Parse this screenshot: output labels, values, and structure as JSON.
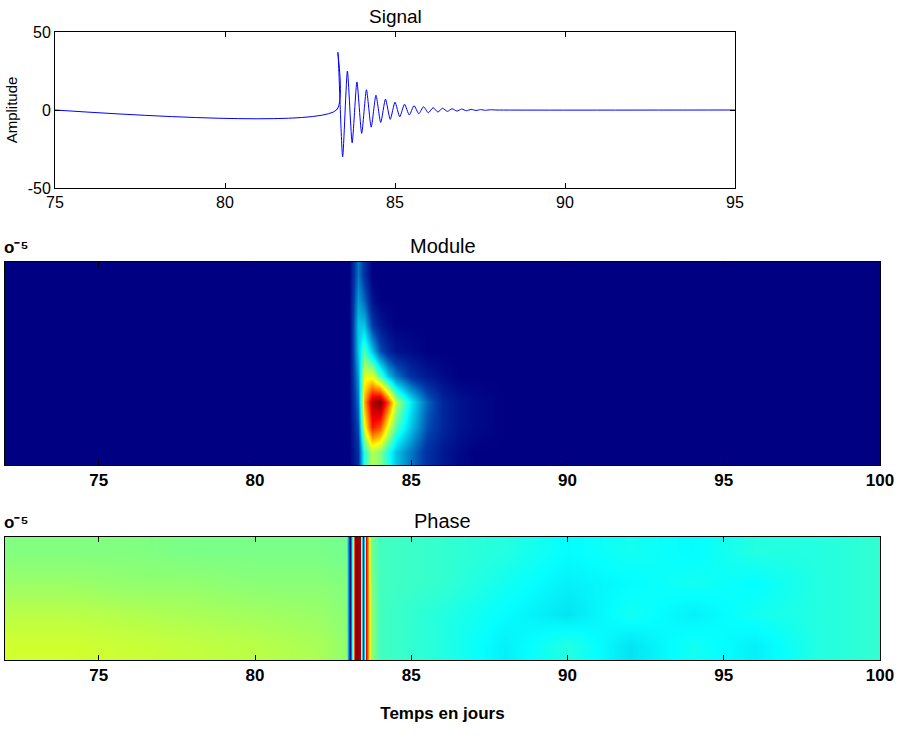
{
  "chart_data": [
    {
      "type": "line",
      "title": "Signal",
      "y_label": "Amplitude",
      "color": "#0000ff",
      "grid": false,
      "x": [
        75,
        83.28,
        83.32,
        83.46,
        83.6,
        83.74,
        83.88,
        84.02,
        84.16,
        84.3,
        84.44,
        84.58,
        84.72,
        84.86,
        85.0,
        85.14,
        85.28,
        85.42,
        85.56,
        85.7,
        85.84,
        85.98,
        86.12,
        86.26,
        86.4,
        86.54,
        86.68,
        86.82,
        86.96,
        87.1,
        87.24,
        87.38,
        87.52,
        87.66,
        87.8,
        88.0,
        95
      ],
      "values": [
        0,
        0,
        37,
        -30,
        25,
        -21,
        18,
        -15,
        13,
        -11,
        9.5,
        -8,
        7,
        -6,
        5,
        -4.3,
        3.7,
        -3.2,
        2.8,
        -2.4,
        2.1,
        -1.8,
        1.5,
        -1.3,
        1.1,
        -0.9,
        0.8,
        -0.7,
        0.6,
        -0.5,
        0.4,
        -0.3,
        0.25,
        -0.2,
        0.15,
        0,
        0
      ],
      "xlim": [
        75,
        95
      ],
      "xticks": [
        75,
        80,
        85,
        90,
        95
      ],
      "ylim": [
        -50,
        50
      ],
      "yticks": [
        -50,
        0,
        50
      ]
    },
    {
      "type": "heatmap",
      "title": "Module",
      "color": "jet",
      "tick_labels": "x",
      "annotations": [
        "o⁻⁵"
      ],
      "x": [
        72,
        82,
        83,
        83.3,
        83.5,
        83.75,
        84,
        84.25,
        84.5,
        85,
        85.5,
        86,
        86.5,
        87,
        88,
        100
      ],
      "cells": [
        [
          0,
          0,
          0,
          0.1,
          0.4,
          0.55,
          0.5,
          0.4,
          0.3,
          0.2,
          0.1,
          0.05,
          0.02,
          0,
          0,
          0
        ],
        [
          0,
          0,
          0,
          0.15,
          0.6,
          0.85,
          0.8,
          0.6,
          0.45,
          0.3,
          0.15,
          0.08,
          0.04,
          0.02,
          0,
          0
        ],
        [
          0,
          0,
          0,
          0.2,
          0.7,
          0.95,
          1.0,
          0.8,
          0.55,
          0.35,
          0.18,
          0.08,
          0.04,
          0.02,
          0,
          0
        ],
        [
          0,
          0,
          0,
          0.25,
          0.6,
          0.6,
          0.45,
          0.3,
          0.2,
          0.1,
          0.05,
          0.02,
          0,
          0,
          0,
          0
        ],
        [
          0,
          0,
          0,
          0.3,
          0.45,
          0.3,
          0.15,
          0.08,
          0.04,
          0.02,
          0,
          0,
          0,
          0,
          0,
          0
        ],
        [
          0,
          0,
          0,
          0.3,
          0.3,
          0.12,
          0.05,
          0.02,
          0,
          0,
          0,
          0,
          0,
          0,
          0,
          0
        ],
        [
          0,
          0,
          0,
          0.25,
          0.18,
          0.04,
          0,
          0,
          0,
          0,
          0,
          0,
          0,
          0,
          0,
          0
        ],
        [
          0,
          0,
          0,
          0.2,
          0.1,
          0,
          0,
          0,
          0,
          0,
          0,
          0,
          0,
          0,
          0,
          0
        ]
      ],
      "zlim": [
        0,
        1
      ],
      "xlim": [
        72,
        100
      ],
      "xticks": [
        75,
        80,
        85,
        90,
        95,
        100
      ]
    },
    {
      "type": "heatmap",
      "title": "Phase",
      "x_label": "Temps en jours",
      "color": "jet",
      "tick_labels": "x",
      "annotations": [
        "o⁻⁵"
      ],
      "x": [
        72,
        74,
        76,
        78,
        80,
        82,
        82.9,
        83.05,
        83.2,
        83.35,
        83.45,
        83.55,
        83.7,
        84,
        86,
        88,
        90,
        92,
        94,
        96,
        98,
        100
      ],
      "cells": [
        [
          0.5,
          0.5,
          0.45,
          0.4,
          0.35,
          0.25,
          0.1,
          -3.0,
          3.1,
          2.9,
          -3.1,
          2.4,
          0.1,
          -0.4,
          -0.6,
          -0.9,
          -0.6,
          -1.0,
          -0.7,
          -0.9,
          -0.6,
          -0.5
        ],
        [
          0.35,
          0.35,
          0.3,
          0.25,
          0.2,
          0.15,
          0.05,
          -3.0,
          3.1,
          2.9,
          -3.1,
          2.4,
          0.1,
          -0.4,
          -0.6,
          -0.8,
          -1.0,
          -0.7,
          -0.9,
          -0.7,
          -0.6,
          -0.5
        ],
        [
          0.15,
          0.15,
          0.1,
          0.1,
          0.05,
          0.05,
          0,
          -3.0,
          3.1,
          2.9,
          -3.1,
          2.4,
          0,
          -0.4,
          -0.5,
          -0.7,
          -0.9,
          -0.8,
          -0.7,
          -0.8,
          -0.6,
          -0.5
        ],
        [
          0,
          0,
          0,
          -0.05,
          -0.05,
          -0.05,
          -0.1,
          -3.0,
          3.1,
          2.9,
          -3.1,
          2.4,
          -0.1,
          -0.4,
          -0.5,
          -0.6,
          -0.8,
          -0.7,
          -0.8,
          -0.6,
          -0.6,
          -0.5
        ]
      ],
      "zlim": [
        -3.14,
        3.14
      ],
      "xlim": [
        72,
        100
      ],
      "xticks": [
        75,
        80,
        85,
        90,
        95,
        100
      ]
    }
  ]
}
